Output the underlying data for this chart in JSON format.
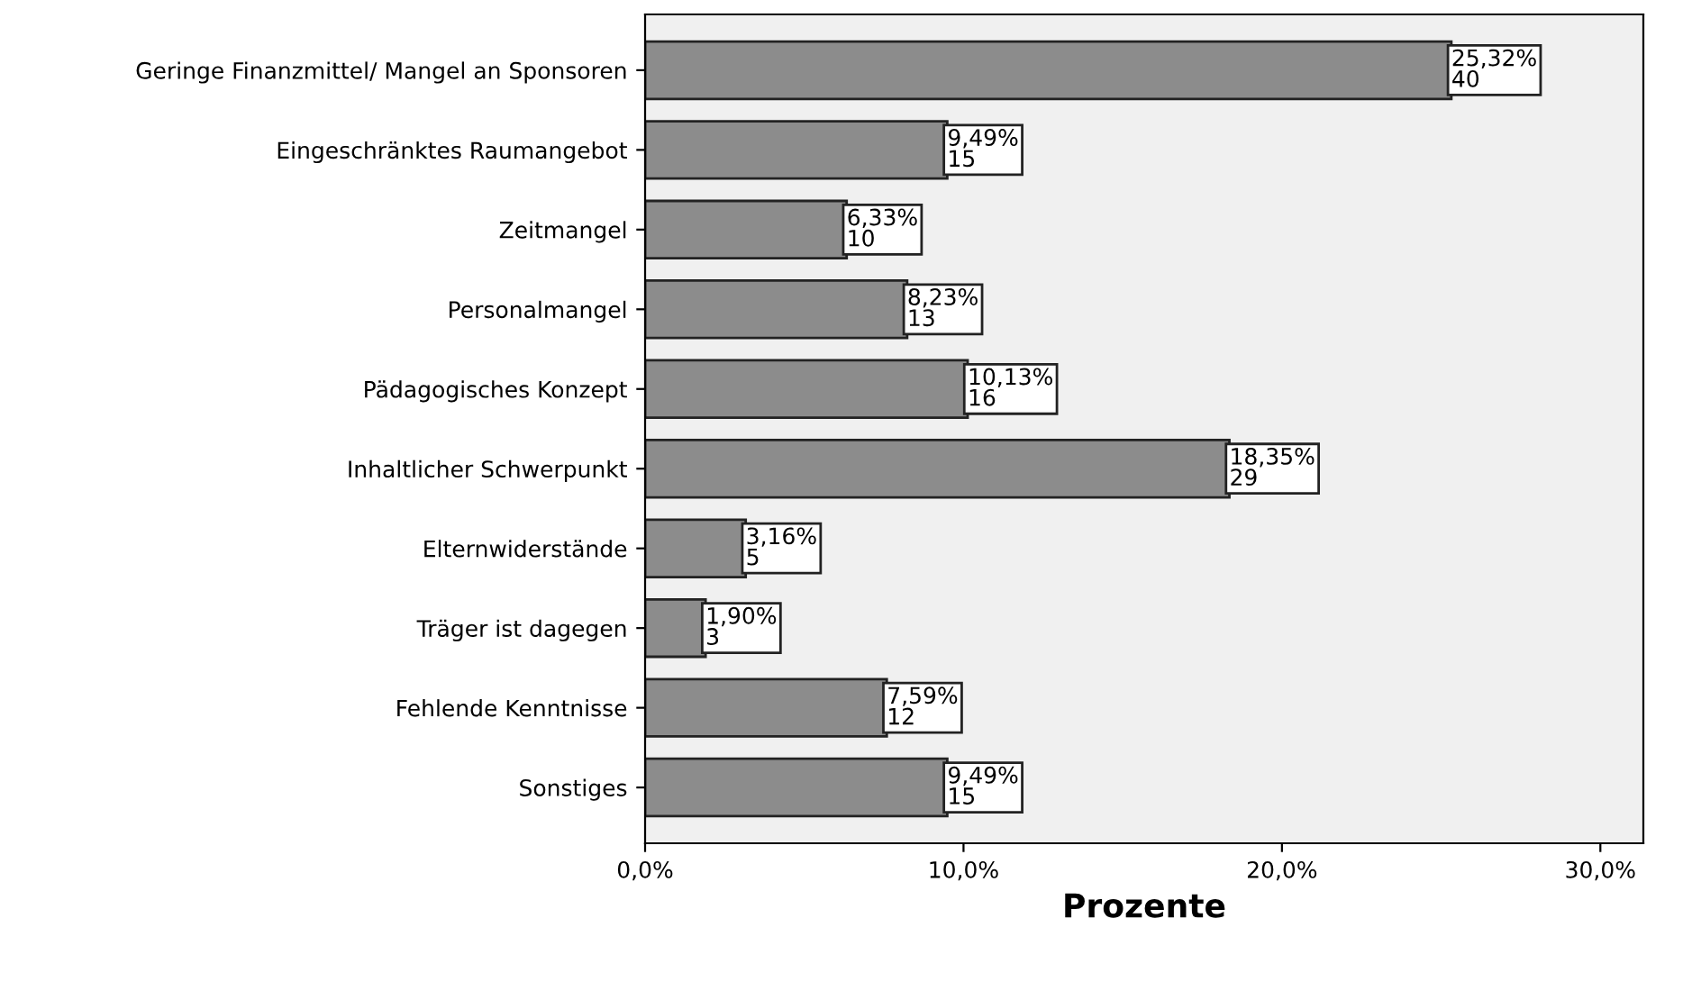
{
  "chart_data": {
    "type": "bar",
    "orientation": "horizontal",
    "categories": [
      "Geringe Finanzmittel/ Mangel an Sponsoren",
      "Eingeschränktes Raumangebot",
      "Zeitmangel",
      "Personalmangel",
      "Pädagogisches Konzept",
      "Inhaltlicher Schwerpunkt",
      "Elternwiderstände",
      "Träger ist dagegen",
      "Fehlende Kenntnisse",
      "Sonstiges"
    ],
    "values": [
      25.32,
      9.49,
      6.33,
      8.23,
      10.13,
      18.35,
      3.16,
      1.9,
      7.59,
      9.49
    ],
    "value_labels": [
      "25,32%\n40",
      "9,49%\n15",
      "6,33%\n10",
      "8,23%\n13",
      "10,13%\n16",
      "18,35%\n29",
      "3,16%\n5",
      "1,90%\n3",
      "7,59%\n12",
      "9,49%\n15"
    ],
    "color": "#8c8c8c",
    "xlabel": "Prozente",
    "xlim": [
      0,
      31.35
    ],
    "xticks": [
      {
        "value": 0,
        "label": "0,0%"
      },
      {
        "value": 10,
        "label": "10,0%"
      },
      {
        "value": 20,
        "label": "20,0%"
      },
      {
        "value": 30,
        "label": "30,0%"
      }
    ],
    "grid": false,
    "legend": false
  }
}
